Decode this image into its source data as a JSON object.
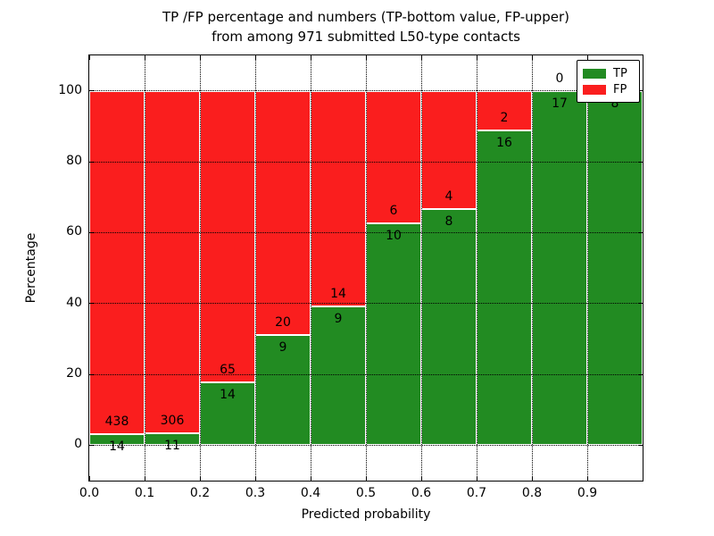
{
  "title": {
    "line1": "TP /FP percentage and numbers (TP-bottom value, FP-upper)",
    "line2": "from among 971 submitted L50-type contacts"
  },
  "chart_data": {
    "type": "bar",
    "stacked": true,
    "title": "TP /FP percentage and numbers (TP-bottom value, FP-upper)\nfrom among 971 submitted L50-type contacts",
    "xlabel": "Predicted probability",
    "ylabel": "Percentage",
    "total_contacts": 971,
    "bins": [
      "0.0-0.1",
      "0.1-0.2",
      "0.2-0.3",
      "0.3-0.4",
      "0.4-0.5",
      "0.5-0.6",
      "0.6-0.7",
      "0.7-0.8",
      "0.8-0.9",
      "0.9-1.0"
    ],
    "bin_width": 0.1,
    "series": [
      {
        "name": "TP",
        "color": "#228B22",
        "counts": [
          14,
          11,
          14,
          9,
          9,
          10,
          8,
          16,
          17,
          8
        ]
      },
      {
        "name": "FP",
        "color": "#FA1E1E",
        "counts": [
          438,
          306,
          65,
          20,
          14,
          6,
          4,
          2,
          0,
          0
        ]
      }
    ],
    "tp_percent": [
      3.1,
      3.5,
      17.7,
      31.0,
      39.1,
      62.5,
      66.7,
      88.9,
      100.0,
      100.0
    ],
    "xlim": [
      0.0,
      1.0
    ],
    "ylim": [
      -10,
      110
    ],
    "xticks": [
      "0.0",
      "0.1",
      "0.2",
      "0.3",
      "0.4",
      "0.5",
      "0.6",
      "0.7",
      "0.8",
      "0.9"
    ],
    "yticks": [
      0,
      20,
      40,
      60,
      80,
      100
    ],
    "grid": "dotted, black, horizontal and vertical",
    "bar_edge_color": "#ffffff",
    "legend": {
      "position": "upper right",
      "entries": [
        "TP",
        "FP"
      ]
    }
  }
}
